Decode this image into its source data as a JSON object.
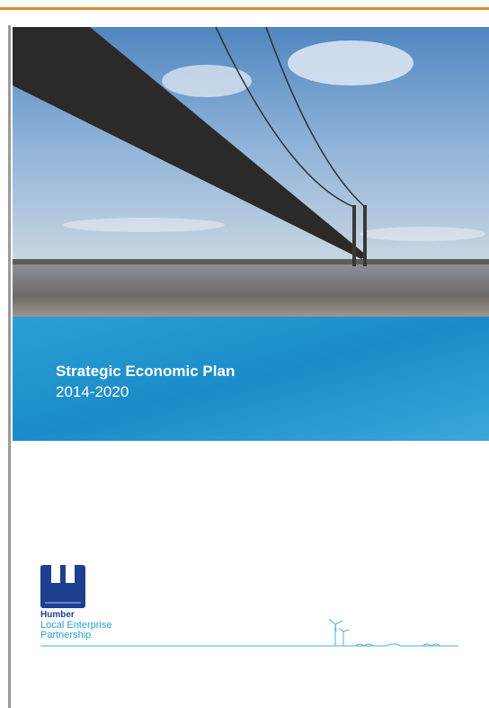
{
  "cover": {
    "title": "Strategic Economic Plan",
    "subtitle": "2014-2020"
  },
  "logo": {
    "name": "Humber",
    "line1": "Local Enterprise",
    "line2": "Partnership"
  }
}
